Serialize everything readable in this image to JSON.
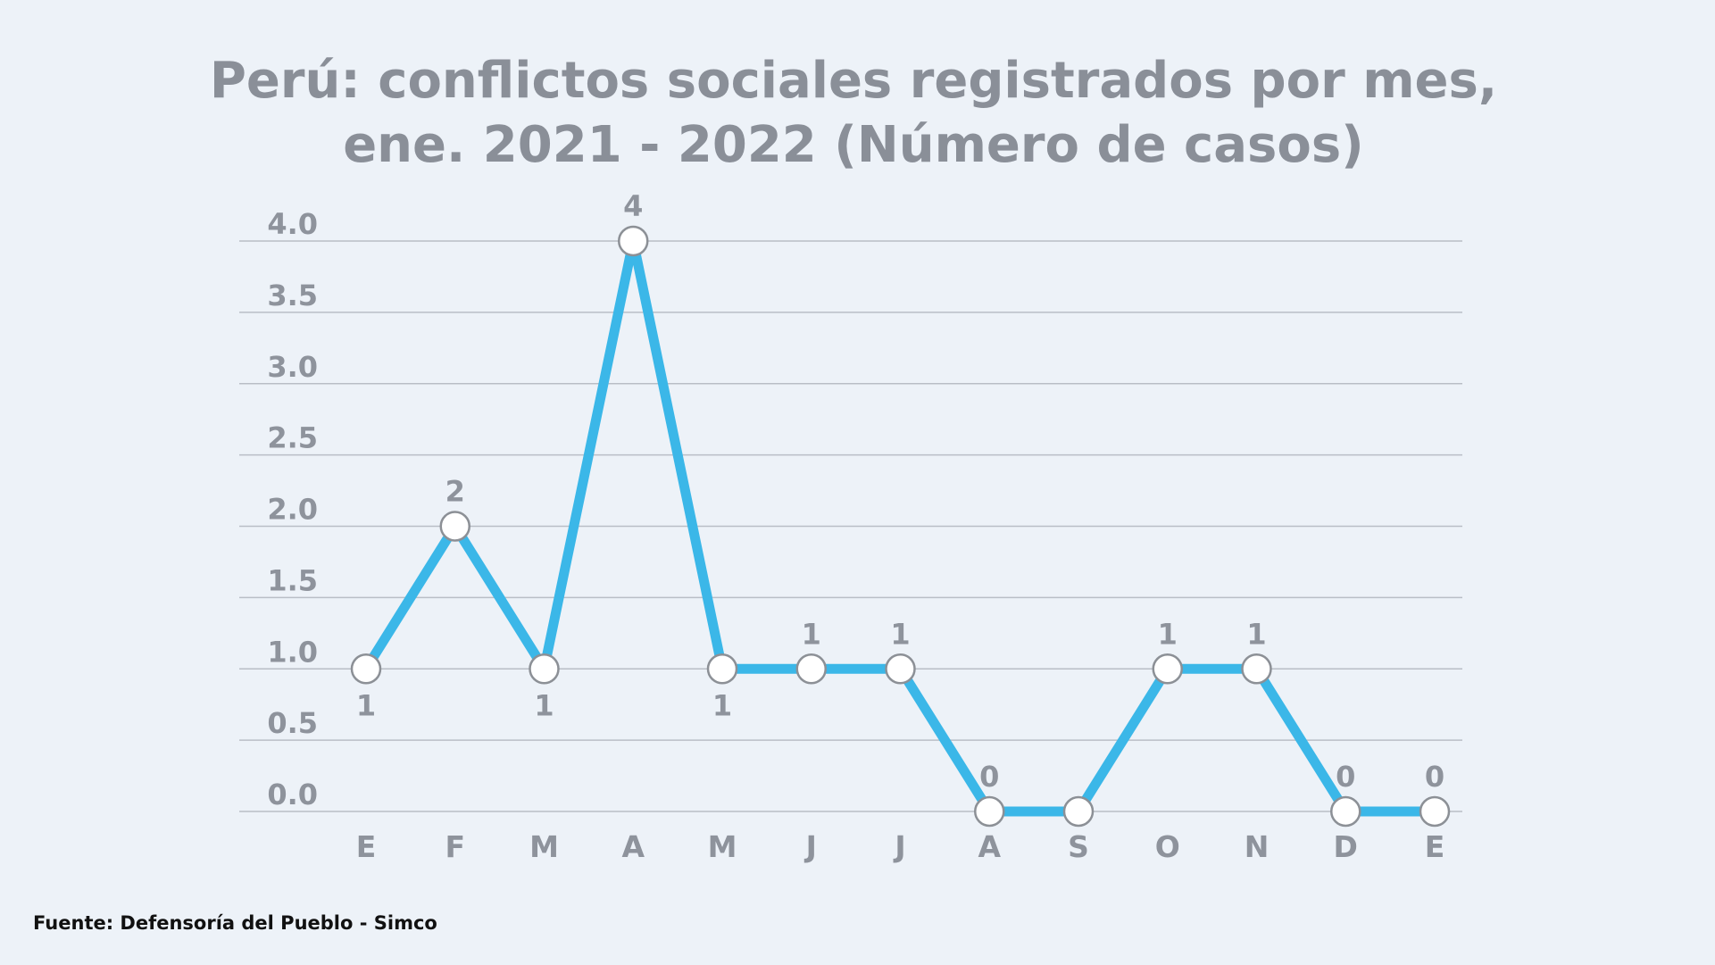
{
  "chart_data": {
    "type": "line",
    "title_lines": [
      "Perú: conflictos sociales registrados por mes,",
      "ene. 2021 - 2022 (Número de casos)"
    ],
    "categories": [
      "E",
      "F",
      "M",
      "A",
      "M",
      "J",
      "J",
      "A",
      "S",
      "O",
      "N",
      "D",
      "E"
    ],
    "series": [
      {
        "values": [
          1,
          2,
          1,
          4,
          1,
          1,
          1,
          0,
          0,
          1,
          1,
          0,
          0
        ],
        "data_labels": [
          "1",
          "2",
          "1",
          "4",
          "1",
          "1",
          "1",
          "0",
          "",
          "1",
          "1",
          "0",
          "0"
        ],
        "label_positions": [
          "below",
          "above",
          "below",
          "above",
          "below",
          "above",
          "above",
          "above",
          "none",
          "above",
          "above",
          "above",
          "above"
        ]
      }
    ],
    "ylim": [
      0,
      4
    ],
    "yticks": [
      "0.0",
      "0.5",
      "1.0",
      "1.5",
      "2.0",
      "2.5",
      "3.0",
      "3.5",
      "4.0"
    ],
    "grid": true,
    "legend": "none",
    "line_color": "#3bb7e8",
    "marker_fill": "#ffffff",
    "marker_stroke": "#8c9096",
    "grid_color": "#b9bec6"
  },
  "source": "Fuente: Defensoría del Pueblo - Simco"
}
